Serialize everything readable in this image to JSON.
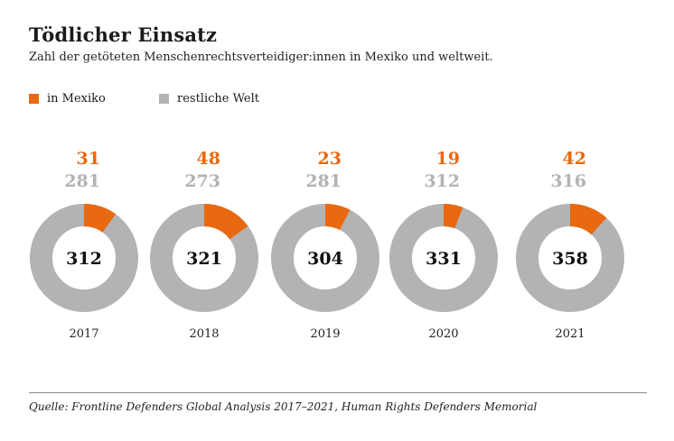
{
  "header": {
    "title": "Tödlicher Einsatz",
    "subtitle": "Zahl der getöteten Menschenrechtsverteidiger:innen in Mexiko und weltweit."
  },
  "legend": {
    "mexico_label": "in Mexiko",
    "rest_label": "restliche Welt"
  },
  "colors": {
    "mexico": "#e8690f",
    "rest": "#b3b3b3",
    "total_text": "#111111",
    "year_text": "#222222"
  },
  "chart_data": {
    "type": "donut",
    "categories": [
      "2017",
      "2018",
      "2019",
      "2020",
      "2021"
    ],
    "series": [
      {
        "name": "in Mexiko",
        "values": [
          31,
          48,
          23,
          19,
          42
        ]
      },
      {
        "name": "restliche Welt",
        "values": [
          281,
          273,
          281,
          312,
          316
        ]
      }
    ],
    "totals": [
      312,
      321,
      304,
      331,
      358
    ],
    "legend_position": "top-left",
    "grid": false
  },
  "footer": {
    "source": "Quelle: Frontline Defenders Global Analysis 2017–2021, Human Rights Defenders Memorial"
  }
}
